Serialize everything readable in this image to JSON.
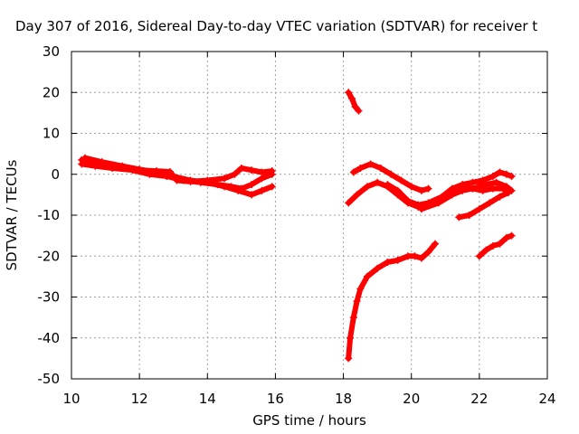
{
  "chart_data": {
    "type": "scatter",
    "title": "Day 307 of 2016, Sidereal Day-to-day VTEC variation (SDTVAR) for receiver t",
    "xlabel": "GPS time / hours",
    "ylabel": "SDTVAR / TECUs",
    "xlim": [
      10,
      24
    ],
    "ylim": [
      -50,
      30
    ],
    "x_ticks": [
      10,
      12,
      14,
      16,
      18,
      20,
      22,
      24
    ],
    "y_ticks": [
      30,
      20,
      10,
      0,
      -10,
      -20,
      -30,
      -40,
      -50
    ],
    "x_tick_labels": [
      "10",
      "12",
      "14",
      "16",
      "18",
      "20",
      "22",
      "24"
    ],
    "y_tick_labels": [
      "30",
      "20",
      "10",
      "0",
      "-10",
      "-20",
      "-30",
      "-40",
      "-50"
    ],
    "grid": true,
    "marker": "plus",
    "color": "#ff0000",
    "series": [
      {
        "points": [
          [
            10.3,
            3.5
          ],
          [
            10.6,
            3.2
          ],
          [
            11.0,
            2.5
          ],
          [
            11.5,
            1.8
          ],
          [
            12.0,
            1.0
          ],
          [
            12.5,
            0.8
          ],
          [
            12.9,
            0.6
          ],
          [
            13.1,
            -1.5
          ],
          [
            13.5,
            -1.8
          ],
          [
            14.0,
            -1.5
          ],
          [
            14.5,
            -1.0
          ],
          [
            14.8,
            0.0
          ],
          [
            15.0,
            1.5
          ],
          [
            15.3,
            1.0
          ],
          [
            15.6,
            0.5
          ],
          [
            15.9,
            0.8
          ]
        ]
      },
      {
        "points": [
          [
            10.3,
            2.5
          ],
          [
            10.7,
            2.0
          ],
          [
            11.2,
            1.5
          ],
          [
            11.8,
            1.0
          ],
          [
            12.3,
            0.0
          ],
          [
            12.8,
            -0.5
          ],
          [
            13.3,
            -1.5
          ],
          [
            13.8,
            -2.0
          ],
          [
            14.3,
            -2.5
          ],
          [
            14.7,
            -3.0
          ],
          [
            15.0,
            -3.5
          ],
          [
            15.3,
            -2.5
          ],
          [
            15.6,
            -1.0
          ],
          [
            15.9,
            0.0
          ]
        ]
      },
      {
        "points": [
          [
            10.4,
            4.0
          ],
          [
            10.9,
            3.0
          ],
          [
            11.5,
            2.0
          ],
          [
            12.0,
            1.2
          ],
          [
            12.5,
            0.5
          ],
          [
            13.0,
            -0.5
          ],
          [
            13.5,
            -1.5
          ],
          [
            14.0,
            -2.0
          ],
          [
            14.5,
            -3.0
          ],
          [
            14.9,
            -4.0
          ],
          [
            15.3,
            -5.0
          ],
          [
            15.6,
            -4.0
          ],
          [
            15.9,
            -3.0
          ]
        ]
      },
      {
        "points": [
          [
            18.15,
            20.0
          ],
          [
            18.25,
            18.5
          ],
          [
            18.35,
            16.5
          ],
          [
            18.45,
            15.5
          ]
        ]
      },
      {
        "points": [
          [
            18.3,
            0.5
          ],
          [
            18.5,
            1.5
          ],
          [
            18.8,
            2.5
          ],
          [
            19.1,
            1.5
          ],
          [
            19.4,
            0.0
          ],
          [
            19.7,
            -1.5
          ],
          [
            20.0,
            -3.0
          ],
          [
            20.3,
            -4.0
          ],
          [
            20.5,
            -3.5
          ]
        ]
      },
      {
        "points": [
          [
            18.15,
            -7.0
          ],
          [
            18.4,
            -5.0
          ],
          [
            18.7,
            -3.0
          ],
          [
            19.0,
            -2.0
          ],
          [
            19.3,
            -3.0
          ],
          [
            19.6,
            -5.0
          ],
          [
            19.9,
            -7.0
          ],
          [
            20.2,
            -8.0
          ],
          [
            20.5,
            -7.5
          ],
          [
            20.9,
            -6.0
          ],
          [
            21.2,
            -4.0
          ],
          [
            21.5,
            -3.0
          ],
          [
            21.8,
            -3.5
          ],
          [
            22.1,
            -4.0
          ],
          [
            22.4,
            -3.5
          ],
          [
            22.7,
            -3.5
          ],
          [
            22.9,
            -4.0
          ]
        ]
      },
      {
        "points": [
          [
            19.3,
            -2.5
          ],
          [
            19.6,
            -4.0
          ],
          [
            19.9,
            -6.5
          ],
          [
            20.2,
            -7.5
          ],
          [
            20.5,
            -7.0
          ],
          [
            20.9,
            -5.5
          ],
          [
            21.2,
            -3.5
          ],
          [
            21.5,
            -2.5
          ],
          [
            21.8,
            -2.0
          ],
          [
            22.1,
            -1.5
          ],
          [
            22.4,
            -0.5
          ],
          [
            22.6,
            0.5
          ],
          [
            22.8,
            0.0
          ],
          [
            22.95,
            -0.5
          ]
        ]
      },
      {
        "points": [
          [
            20.3,
            -8.5
          ],
          [
            20.8,
            -7.0
          ],
          [
            21.2,
            -5.0
          ],
          [
            21.5,
            -4.0
          ],
          [
            21.8,
            -3.5
          ],
          [
            22.2,
            -2.5
          ],
          [
            22.5,
            -2.0
          ],
          [
            22.8,
            -3.0
          ],
          [
            22.95,
            -4.0
          ]
        ]
      },
      {
        "points": [
          [
            21.4,
            -10.5
          ],
          [
            21.7,
            -10.0
          ],
          [
            22.0,
            -8.5
          ],
          [
            22.3,
            -7.0
          ],
          [
            22.6,
            -5.5
          ],
          [
            22.85,
            -4.5
          ]
        ]
      },
      {
        "points": [
          [
            18.15,
            -45.0
          ],
          [
            18.2,
            -40.0
          ],
          [
            18.3,
            -35.0
          ],
          [
            18.4,
            -31.0
          ],
          [
            18.5,
            -28.0
          ],
          [
            18.7,
            -25.0
          ],
          [
            19.0,
            -23.0
          ],
          [
            19.3,
            -21.5
          ],
          [
            19.6,
            -21.0
          ],
          [
            19.9,
            -20.0
          ],
          [
            20.1,
            -20.0
          ],
          [
            20.3,
            -20.5
          ],
          [
            20.5,
            -19.0
          ],
          [
            20.7,
            -17.0
          ]
        ]
      },
      {
        "points": [
          [
            22.0,
            -20.0
          ],
          [
            22.2,
            -18.5
          ],
          [
            22.4,
            -17.5
          ],
          [
            22.6,
            -17.0
          ],
          [
            22.8,
            -15.5
          ],
          [
            22.95,
            -15.0
          ]
        ]
      }
    ]
  }
}
